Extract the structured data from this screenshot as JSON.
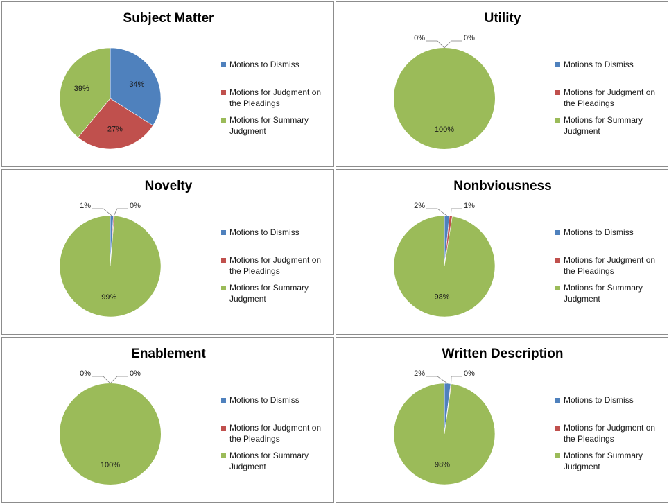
{
  "colors": {
    "dismiss": "#4f81bd",
    "pleadings": "#c0504d",
    "summary": "#9bbb59"
  },
  "legend_labels": [
    "Motions to Dismiss",
    "Motions for Judgment on the Pleadings",
    "Motions for Summary Judgment"
  ],
  "chart_data": [
    {
      "type": "pie",
      "title": "Subject Matter",
      "labels": [
        "Motions to Dismiss",
        "Motions for Judgment on the Pleadings",
        "Motions for Summary Judgment"
      ],
      "values": [
        34,
        27,
        39
      ],
      "data_labels": [
        "34%",
        "27%",
        "39%"
      ],
      "legend": "right"
    },
    {
      "type": "pie",
      "title": "Utility",
      "labels": [
        "Motions to Dismiss",
        "Motions for Judgment on the Pleadings",
        "Motions for Summary Judgment"
      ],
      "values": [
        0,
        0,
        100
      ],
      "data_labels": [
        "0%",
        "0%",
        "100%"
      ],
      "legend": "right"
    },
    {
      "type": "pie",
      "title": "Novelty",
      "labels": [
        "Motions to Dismiss",
        "Motions for Judgment on the Pleadings",
        "Motions for Summary Judgment"
      ],
      "values": [
        1,
        0.3,
        98.7
      ],
      "data_labels": [
        "1%",
        "0%",
        "99%"
      ],
      "legend": "right"
    },
    {
      "type": "pie",
      "title": "Nonbviousness",
      "labels": [
        "Motions to Dismiss",
        "Motions for Judgment on the Pleadings",
        "Motions for Summary Judgment"
      ],
      "values": [
        1.6,
        0.9,
        97.5
      ],
      "data_labels": [
        "2%",
        "1%",
        "98%"
      ],
      "legend": "right"
    },
    {
      "type": "pie",
      "title": "Enablement",
      "labels": [
        "Motions to Dismiss",
        "Motions for Judgment on the Pleadings",
        "Motions for Summary Judgment"
      ],
      "values": [
        0,
        0,
        100
      ],
      "data_labels": [
        "0%",
        "0%",
        "100%"
      ],
      "legend": "right"
    },
    {
      "type": "pie",
      "title": "Written Description",
      "labels": [
        "Motions to Dismiss",
        "Motions for Judgment on the Pleadings",
        "Motions for Summary Judgment"
      ],
      "values": [
        2,
        0.2,
        97.8
      ],
      "data_labels": [
        "2%",
        "0%",
        "98%"
      ],
      "legend": "right"
    }
  ]
}
